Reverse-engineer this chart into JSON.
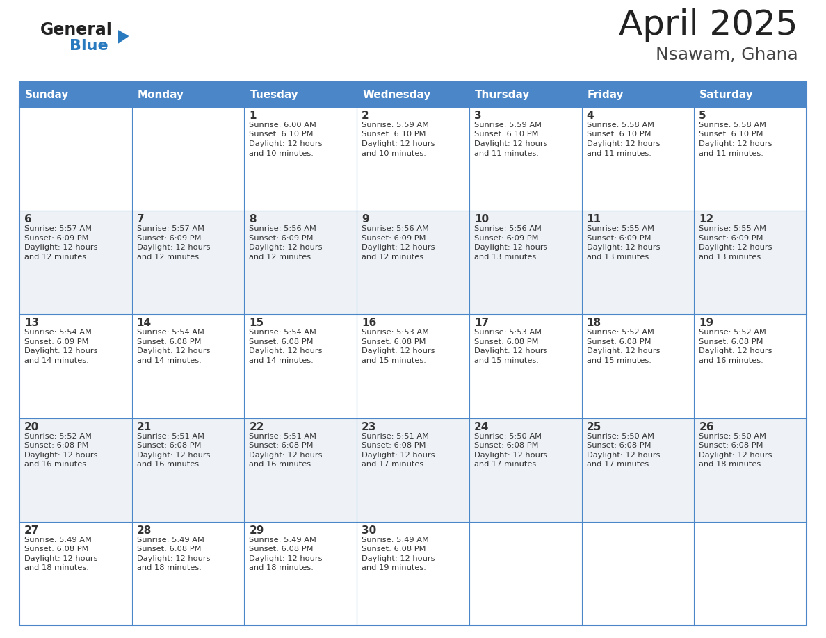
{
  "title": "April 2025",
  "subtitle": "Nsawam, Ghana",
  "header_bg": "#4a86c8",
  "header_text_color": "#ffffff",
  "cell_bg_even": "#eef2f7",
  "cell_bg_odd": "#ffffff",
  "border_color": "#4a86c8",
  "text_color": "#333333",
  "days_of_week": [
    "Sunday",
    "Monday",
    "Tuesday",
    "Wednesday",
    "Thursday",
    "Friday",
    "Saturday"
  ],
  "logo_general_color": "#222222",
  "logo_blue_color": "#2a7abf",
  "logo_triangle_color": "#2a7abf",
  "title_color": "#222222",
  "subtitle_color": "#444444",
  "calendar": [
    [
      {
        "day": "",
        "sunrise": "",
        "sunset": "",
        "daylight": ""
      },
      {
        "day": "",
        "sunrise": "",
        "sunset": "",
        "daylight": ""
      },
      {
        "day": "1",
        "sunrise": "Sunrise: 6:00 AM",
        "sunset": "Sunset: 6:10 PM",
        "daylight": "Daylight: 12 hours\nand 10 minutes."
      },
      {
        "day": "2",
        "sunrise": "Sunrise: 5:59 AM",
        "sunset": "Sunset: 6:10 PM",
        "daylight": "Daylight: 12 hours\nand 10 minutes."
      },
      {
        "day": "3",
        "sunrise": "Sunrise: 5:59 AM",
        "sunset": "Sunset: 6:10 PM",
        "daylight": "Daylight: 12 hours\nand 11 minutes."
      },
      {
        "day": "4",
        "sunrise": "Sunrise: 5:58 AM",
        "sunset": "Sunset: 6:10 PM",
        "daylight": "Daylight: 12 hours\nand 11 minutes."
      },
      {
        "day": "5",
        "sunrise": "Sunrise: 5:58 AM",
        "sunset": "Sunset: 6:10 PM",
        "daylight": "Daylight: 12 hours\nand 11 minutes."
      }
    ],
    [
      {
        "day": "6",
        "sunrise": "Sunrise: 5:57 AM",
        "sunset": "Sunset: 6:09 PM",
        "daylight": "Daylight: 12 hours\nand 12 minutes."
      },
      {
        "day": "7",
        "sunrise": "Sunrise: 5:57 AM",
        "sunset": "Sunset: 6:09 PM",
        "daylight": "Daylight: 12 hours\nand 12 minutes."
      },
      {
        "day": "8",
        "sunrise": "Sunrise: 5:56 AM",
        "sunset": "Sunset: 6:09 PM",
        "daylight": "Daylight: 12 hours\nand 12 minutes."
      },
      {
        "day": "9",
        "sunrise": "Sunrise: 5:56 AM",
        "sunset": "Sunset: 6:09 PM",
        "daylight": "Daylight: 12 hours\nand 12 minutes."
      },
      {
        "day": "10",
        "sunrise": "Sunrise: 5:56 AM",
        "sunset": "Sunset: 6:09 PM",
        "daylight": "Daylight: 12 hours\nand 13 minutes."
      },
      {
        "day": "11",
        "sunrise": "Sunrise: 5:55 AM",
        "sunset": "Sunset: 6:09 PM",
        "daylight": "Daylight: 12 hours\nand 13 minutes."
      },
      {
        "day": "12",
        "sunrise": "Sunrise: 5:55 AM",
        "sunset": "Sunset: 6:09 PM",
        "daylight": "Daylight: 12 hours\nand 13 minutes."
      }
    ],
    [
      {
        "day": "13",
        "sunrise": "Sunrise: 5:54 AM",
        "sunset": "Sunset: 6:09 PM",
        "daylight": "Daylight: 12 hours\nand 14 minutes."
      },
      {
        "day": "14",
        "sunrise": "Sunrise: 5:54 AM",
        "sunset": "Sunset: 6:08 PM",
        "daylight": "Daylight: 12 hours\nand 14 minutes."
      },
      {
        "day": "15",
        "sunrise": "Sunrise: 5:54 AM",
        "sunset": "Sunset: 6:08 PM",
        "daylight": "Daylight: 12 hours\nand 14 minutes."
      },
      {
        "day": "16",
        "sunrise": "Sunrise: 5:53 AM",
        "sunset": "Sunset: 6:08 PM",
        "daylight": "Daylight: 12 hours\nand 15 minutes."
      },
      {
        "day": "17",
        "sunrise": "Sunrise: 5:53 AM",
        "sunset": "Sunset: 6:08 PM",
        "daylight": "Daylight: 12 hours\nand 15 minutes."
      },
      {
        "day": "18",
        "sunrise": "Sunrise: 5:52 AM",
        "sunset": "Sunset: 6:08 PM",
        "daylight": "Daylight: 12 hours\nand 15 minutes."
      },
      {
        "day": "19",
        "sunrise": "Sunrise: 5:52 AM",
        "sunset": "Sunset: 6:08 PM",
        "daylight": "Daylight: 12 hours\nand 16 minutes."
      }
    ],
    [
      {
        "day": "20",
        "sunrise": "Sunrise: 5:52 AM",
        "sunset": "Sunset: 6:08 PM",
        "daylight": "Daylight: 12 hours\nand 16 minutes."
      },
      {
        "day": "21",
        "sunrise": "Sunrise: 5:51 AM",
        "sunset": "Sunset: 6:08 PM",
        "daylight": "Daylight: 12 hours\nand 16 minutes."
      },
      {
        "day": "22",
        "sunrise": "Sunrise: 5:51 AM",
        "sunset": "Sunset: 6:08 PM",
        "daylight": "Daylight: 12 hours\nand 16 minutes."
      },
      {
        "day": "23",
        "sunrise": "Sunrise: 5:51 AM",
        "sunset": "Sunset: 6:08 PM",
        "daylight": "Daylight: 12 hours\nand 17 minutes."
      },
      {
        "day": "24",
        "sunrise": "Sunrise: 5:50 AM",
        "sunset": "Sunset: 6:08 PM",
        "daylight": "Daylight: 12 hours\nand 17 minutes."
      },
      {
        "day": "25",
        "sunrise": "Sunrise: 5:50 AM",
        "sunset": "Sunset: 6:08 PM",
        "daylight": "Daylight: 12 hours\nand 17 minutes."
      },
      {
        "day": "26",
        "sunrise": "Sunrise: 5:50 AM",
        "sunset": "Sunset: 6:08 PM",
        "daylight": "Daylight: 12 hours\nand 18 minutes."
      }
    ],
    [
      {
        "day": "27",
        "sunrise": "Sunrise: 5:49 AM",
        "sunset": "Sunset: 6:08 PM",
        "daylight": "Daylight: 12 hours\nand 18 minutes."
      },
      {
        "day": "28",
        "sunrise": "Sunrise: 5:49 AM",
        "sunset": "Sunset: 6:08 PM",
        "daylight": "Daylight: 12 hours\nand 18 minutes."
      },
      {
        "day": "29",
        "sunrise": "Sunrise: 5:49 AM",
        "sunset": "Sunset: 6:08 PM",
        "daylight": "Daylight: 12 hours\nand 18 minutes."
      },
      {
        "day": "30",
        "sunrise": "Sunrise: 5:49 AM",
        "sunset": "Sunset: 6:08 PM",
        "daylight": "Daylight: 12 hours\nand 19 minutes."
      },
      {
        "day": "",
        "sunrise": "",
        "sunset": "",
        "daylight": ""
      },
      {
        "day": "",
        "sunrise": "",
        "sunset": "",
        "daylight": ""
      },
      {
        "day": "",
        "sunrise": "",
        "sunset": "",
        "daylight": ""
      }
    ]
  ]
}
